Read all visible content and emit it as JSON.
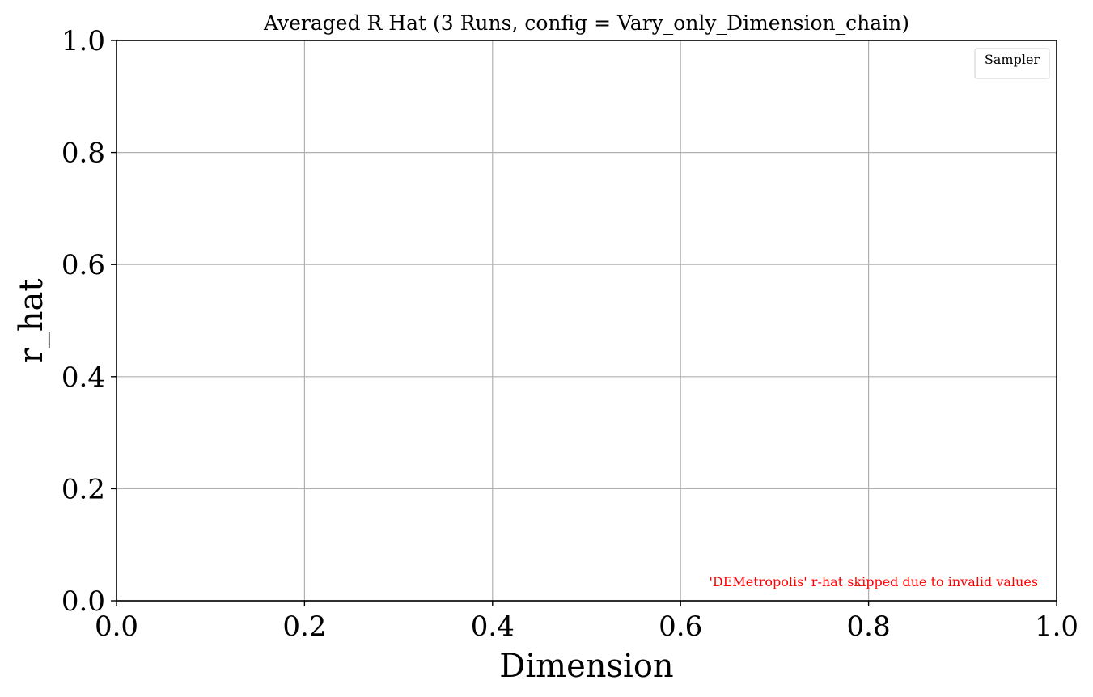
{
  "chart_data": {
    "type": "line",
    "title": "Averaged R Hat (3 Runs, config = Vary_only_Dimension_chain)",
    "xlabel": "Dimension",
    "ylabel": "r_hat",
    "xlim": [
      0.0,
      1.0
    ],
    "ylim": [
      0.0,
      1.0
    ],
    "xticks": [
      "0.0",
      "0.2",
      "0.4",
      "0.6",
      "0.8",
      "1.0"
    ],
    "yticks": [
      "0.0",
      "0.2",
      "0.4",
      "0.6",
      "0.8",
      "1.0"
    ],
    "grid": true,
    "series": [],
    "legend": {
      "title": "Sampler",
      "placement": "top-right",
      "entries": []
    },
    "annotation": {
      "text": "'DEMetropolis' r-hat skipped due to invalid values",
      "color": "#ff0000",
      "placement": "bottom-right"
    }
  }
}
